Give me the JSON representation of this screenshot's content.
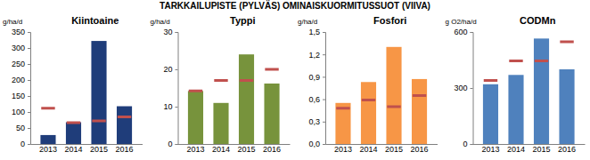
{
  "title": "TARKKAILUPISTE (PYLVÄS) OMINAISKUORMITUSSUOT (VIIVA)",
  "chart_data": [
    {
      "type": "bar",
      "title": "Kiintoaine",
      "y_label": "g/ha/d",
      "categories": [
        "2013",
        "2014",
        "2015",
        "2016"
      ],
      "series": [
        {
          "type": "bar",
          "color": "#1f3d7a",
          "values": [
            28,
            68,
            322,
            118
          ]
        },
        {
          "type": "line",
          "line_style": "none",
          "marker": "dash",
          "color": "#c0504d",
          "values": [
            112,
            67,
            72,
            85
          ]
        }
      ],
      "ylim": [
        0,
        350
      ],
      "yticks": [
        0,
        50,
        100,
        150,
        200,
        250,
        300,
        350
      ],
      "grid": false
    },
    {
      "type": "bar",
      "title": "Typpi",
      "y_label": "g/ha/d",
      "categories": [
        "2013",
        "2014",
        "2015",
        "2016"
      ],
      "series": [
        {
          "type": "bar",
          "color": "#77933c",
          "values": [
            14.2,
            11,
            24,
            16.2
          ]
        },
        {
          "type": "line",
          "line_style": "none",
          "marker": "dash",
          "color": "#c0504d",
          "values": [
            14.2,
            17,
            17,
            20
          ]
        }
      ],
      "ylim": [
        0,
        30
      ],
      "yticks": [
        0,
        10,
        20,
        30
      ],
      "grid": false
    },
    {
      "type": "bar",
      "title": "Fosfori",
      "y_label": "g/ha/d",
      "categories": [
        "2013",
        "2014",
        "2015",
        "2016"
      ],
      "series": [
        {
          "type": "bar",
          "color": "#f79646",
          "values": [
            0.55,
            0.83,
            1.3,
            0.87
          ]
        },
        {
          "type": "line",
          "line_style": "none",
          "marker": "dash",
          "color": "#c0504d",
          "values": [
            0.48,
            0.59,
            0.5,
            0.65
          ]
        }
      ],
      "ylim": [
        0,
        1.5
      ],
      "yticks": [
        {
          "value": 0,
          "label": "0,0"
        },
        {
          "value": 0.3,
          "label": "0,3"
        },
        {
          "value": 0.6,
          "label": "0,6"
        },
        {
          "value": 0.9,
          "label": "0,9"
        },
        {
          "value": 1.2,
          "label": "1,2"
        },
        {
          "value": 1.5,
          "label": "1,5"
        }
      ],
      "grid": false
    },
    {
      "type": "bar",
      "title": "CODMn",
      "y_label": "g O2/ha/d",
      "categories": [
        "2013",
        "2014",
        "2015",
        "2016"
      ],
      "series": [
        {
          "type": "bar",
          "color": "#4f81bd",
          "values": [
            320,
            370,
            565,
            400
          ]
        },
        {
          "type": "line",
          "line_style": "none",
          "marker": "dash",
          "color": "#c0504d",
          "values": [
            340,
            445,
            445,
            548
          ]
        }
      ],
      "ylim": [
        0,
        600
      ],
      "yticks": [
        0,
        300,
        600
      ],
      "grid": false
    }
  ]
}
